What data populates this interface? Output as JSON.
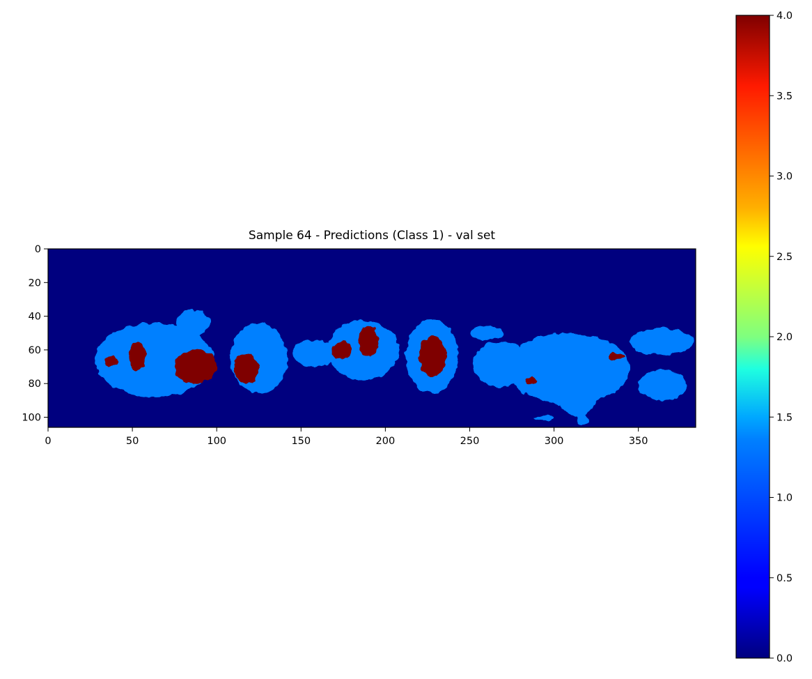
{
  "chart_data": {
    "type": "heatmap",
    "title": "Sample 64 - Predictions (Class 1) - val set",
    "xlabel": "",
    "ylabel": "",
    "image_size": {
      "width": 384,
      "height": 106
    },
    "xlim": [
      0,
      384
    ],
    "ylim": [
      106,
      0
    ],
    "xticks": [
      0,
      50,
      100,
      150,
      200,
      250,
      300,
      350
    ],
    "xtick_labels": [
      "0",
      "50",
      "100",
      "150",
      "200",
      "250",
      "300",
      "350"
    ],
    "yticks": [
      0,
      20,
      40,
      60,
      80,
      100
    ],
    "ytick_labels": [
      "0",
      "20",
      "40",
      "60",
      "80",
      "100"
    ],
    "colormap": "jet",
    "colors": {
      "background": "#00007f",
      "class_1": "#0080ff",
      "class_4": "#7f0000",
      "minor": "#ff9900"
    },
    "colorbar": {
      "min": 0.0,
      "max": 4.0,
      "ticks": [
        0.0,
        0.5,
        1.0,
        1.5,
        2.0,
        2.5,
        3.0,
        3.5,
        4.0
      ],
      "tick_labels": [
        "0.0",
        "0.5",
        "1.0",
        "1.5",
        "2.0",
        "2.5",
        "3.0",
        "3.5",
        "4.0"
      ]
    },
    "grid": false,
    "regions": [
      {
        "value": 1,
        "label": "class-1 blob",
        "x": [
          28,
          98
        ],
        "y": [
          44,
          88
        ]
      },
      {
        "value": 1,
        "label": "class-1 blob",
        "x": [
          76,
          96
        ],
        "y": [
          36,
          52
        ]
      },
      {
        "value": 1,
        "label": "class-1 blob",
        "x": [
          108,
          142
        ],
        "y": [
          44,
          86
        ]
      },
      {
        "value": 1,
        "label": "class-1 blob",
        "x": [
          145,
          170
        ],
        "y": [
          54,
          70
        ]
      },
      {
        "value": 1,
        "label": "class-1 blob",
        "x": [
          166,
          208
        ],
        "y": [
          42,
          78
        ]
      },
      {
        "value": 1,
        "label": "class-1 blob",
        "x": [
          212,
          243
        ],
        "y": [
          42,
          86
        ]
      },
      {
        "value": 1,
        "label": "class-1 blob",
        "x": [
          250,
          270
        ],
        "y": [
          46,
          54
        ]
      },
      {
        "value": 1,
        "label": "class-1 blob",
        "x": [
          252,
          285
        ],
        "y": [
          55,
          82
        ]
      },
      {
        "value": 1,
        "label": "class-1 blob",
        "x": [
          272,
          345
        ],
        "y": [
          50,
          92
        ]
      },
      {
        "value": 1,
        "label": "class-1 blob",
        "x": [
          300,
          328
        ],
        "y": [
          52,
          100
        ]
      },
      {
        "value": 1,
        "label": "class-1 blob",
        "x": [
          345,
          383
        ],
        "y": [
          47,
          63
        ]
      },
      {
        "value": 1,
        "label": "class-1 blob",
        "x": [
          350,
          378
        ],
        "y": [
          72,
          90
        ]
      },
      {
        "value": 1,
        "label": "class-1 blob",
        "x": [
          288,
          300
        ],
        "y": [
          99,
          102
        ]
      },
      {
        "value": 1,
        "label": "class-1 blob",
        "x": [
          314,
          320
        ],
        "y": [
          98,
          105
        ]
      },
      {
        "value": 4,
        "label": "class-4 patch",
        "x": [
          33,
          42
        ],
        "y": [
          64,
          70
        ]
      },
      {
        "value": 4,
        "label": "class-4 patch",
        "x": [
          48,
          58
        ],
        "y": [
          55,
          72
        ]
      },
      {
        "value": 4,
        "label": "class-4 patch",
        "x": [
          75,
          100
        ],
        "y": [
          60,
          80
        ]
      },
      {
        "value": 4,
        "label": "class-4 patch",
        "x": [
          110,
          125
        ],
        "y": [
          62,
          80
        ]
      },
      {
        "value": 4,
        "label": "class-4 patch",
        "x": [
          168,
          180
        ],
        "y": [
          55,
          66
        ]
      },
      {
        "value": 4,
        "label": "class-4 patch",
        "x": [
          184,
          196
        ],
        "y": [
          46,
          64
        ]
      },
      {
        "value": 4,
        "label": "class-4 patch",
        "x": [
          220,
          236
        ],
        "y": [
          52,
          76
        ]
      },
      {
        "value": 4,
        "label": "class-4 patch",
        "x": [
          283,
          290
        ],
        "y": [
          76,
          80
        ]
      },
      {
        "value": 4,
        "label": "class-4 patch",
        "x": [
          332,
          342
        ],
        "y": [
          62,
          66
        ]
      }
    ]
  }
}
